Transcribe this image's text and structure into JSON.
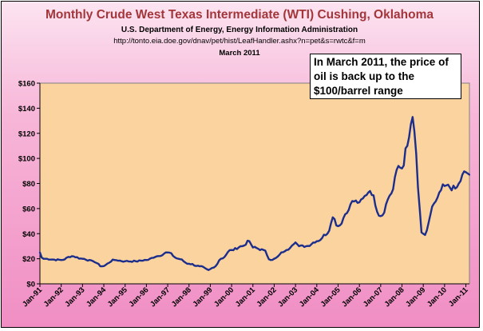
{
  "chart_data": {
    "type": "line",
    "title": "Monthly Crude West Texas Intermediate (WTI) Cushing, Oklahoma",
    "subtitle_lines": [
      "U.S. Department of Energy, Energy Information Administration",
      "http://tonto.eia.doe.gov/dnav/pet/hist/LeafHandler.ashx?n=pet&s=rwtc&f=m",
      "March 2011"
    ],
    "annotation": "In March 2011, the price of oil is back up to the $100/barrel range",
    "ylim": [
      0,
      160
    ],
    "y_ticks": [
      "$0",
      "$20",
      "$40",
      "$60",
      "$80",
      "$100",
      "$120",
      "$140",
      "$160"
    ],
    "x_tick_labels": [
      "Jan-91",
      "Jan-92",
      "Jan-93",
      "Jan-94",
      "Jan-95",
      "Jan-96",
      "Jan-97",
      "Jan-98",
      "Jan-99",
      "Jan-00",
      "Jan-01",
      "Jan-02",
      "Jan-03",
      "Jan-04",
      "Jan-05",
      "Jan-06",
      "Jan-07",
      "Jan-08",
      "Jan-09",
      "Jan-10",
      "Jan-11"
    ],
    "x_range": [
      "Jan-91",
      "Mar-11"
    ],
    "grid": false,
    "line_color": "#1c2e8c",
    "plot_background": "#fbd39f",
    "series": [
      {
        "x": [
          "Jan-91",
          "Feb-91",
          "Mar-91",
          "Jan-92",
          "Jul-92",
          "Jan-93",
          "Jul-93",
          "Dec-93",
          "Jul-94",
          "Jan-95",
          "Jul-95",
          "Jan-96",
          "Jul-96",
          "Jan-97",
          "Jul-97",
          "Jan-98",
          "Jul-98",
          "Dec-98",
          "Mar-99",
          "Jul-99",
          "Jan-00",
          "Jul-00",
          "Nov-00",
          "Jan-01",
          "Jul-01",
          "Nov-01",
          "Jan-02",
          "Jul-02",
          "Jan-03",
          "Mar-03",
          "Jul-03",
          "Jan-04",
          "Jul-04",
          "Oct-04",
          "Jan-05",
          "Jul-05",
          "Sep-05",
          "Jan-06",
          "Jul-06",
          "Jan-07",
          "Jul-07",
          "Nov-07",
          "Jan-08",
          "Apr-08",
          "Jul-08",
          "Sep-08",
          "Oct-08",
          "Dec-08",
          "Feb-09",
          "Jul-09",
          "Jan-10",
          "Jul-10",
          "Jan-11",
          "Mar-11"
        ],
        "y": [
          25,
          21,
          20,
          19,
          22,
          20,
          18,
          14,
          19,
          18,
          18,
          19,
          22,
          25,
          20,
          16,
          14,
          11,
          13,
          20,
          27,
          30,
          34,
          29,
          27,
          19,
          20,
          26,
          33,
          30,
          30,
          34,
          40,
          53,
          46,
          59,
          66,
          65,
          74,
          54,
          72,
          94,
          92,
          110,
          133,
          104,
          77,
          41,
          39,
          64,
          78,
          76,
          89,
          87
        ]
      }
    ]
  }
}
